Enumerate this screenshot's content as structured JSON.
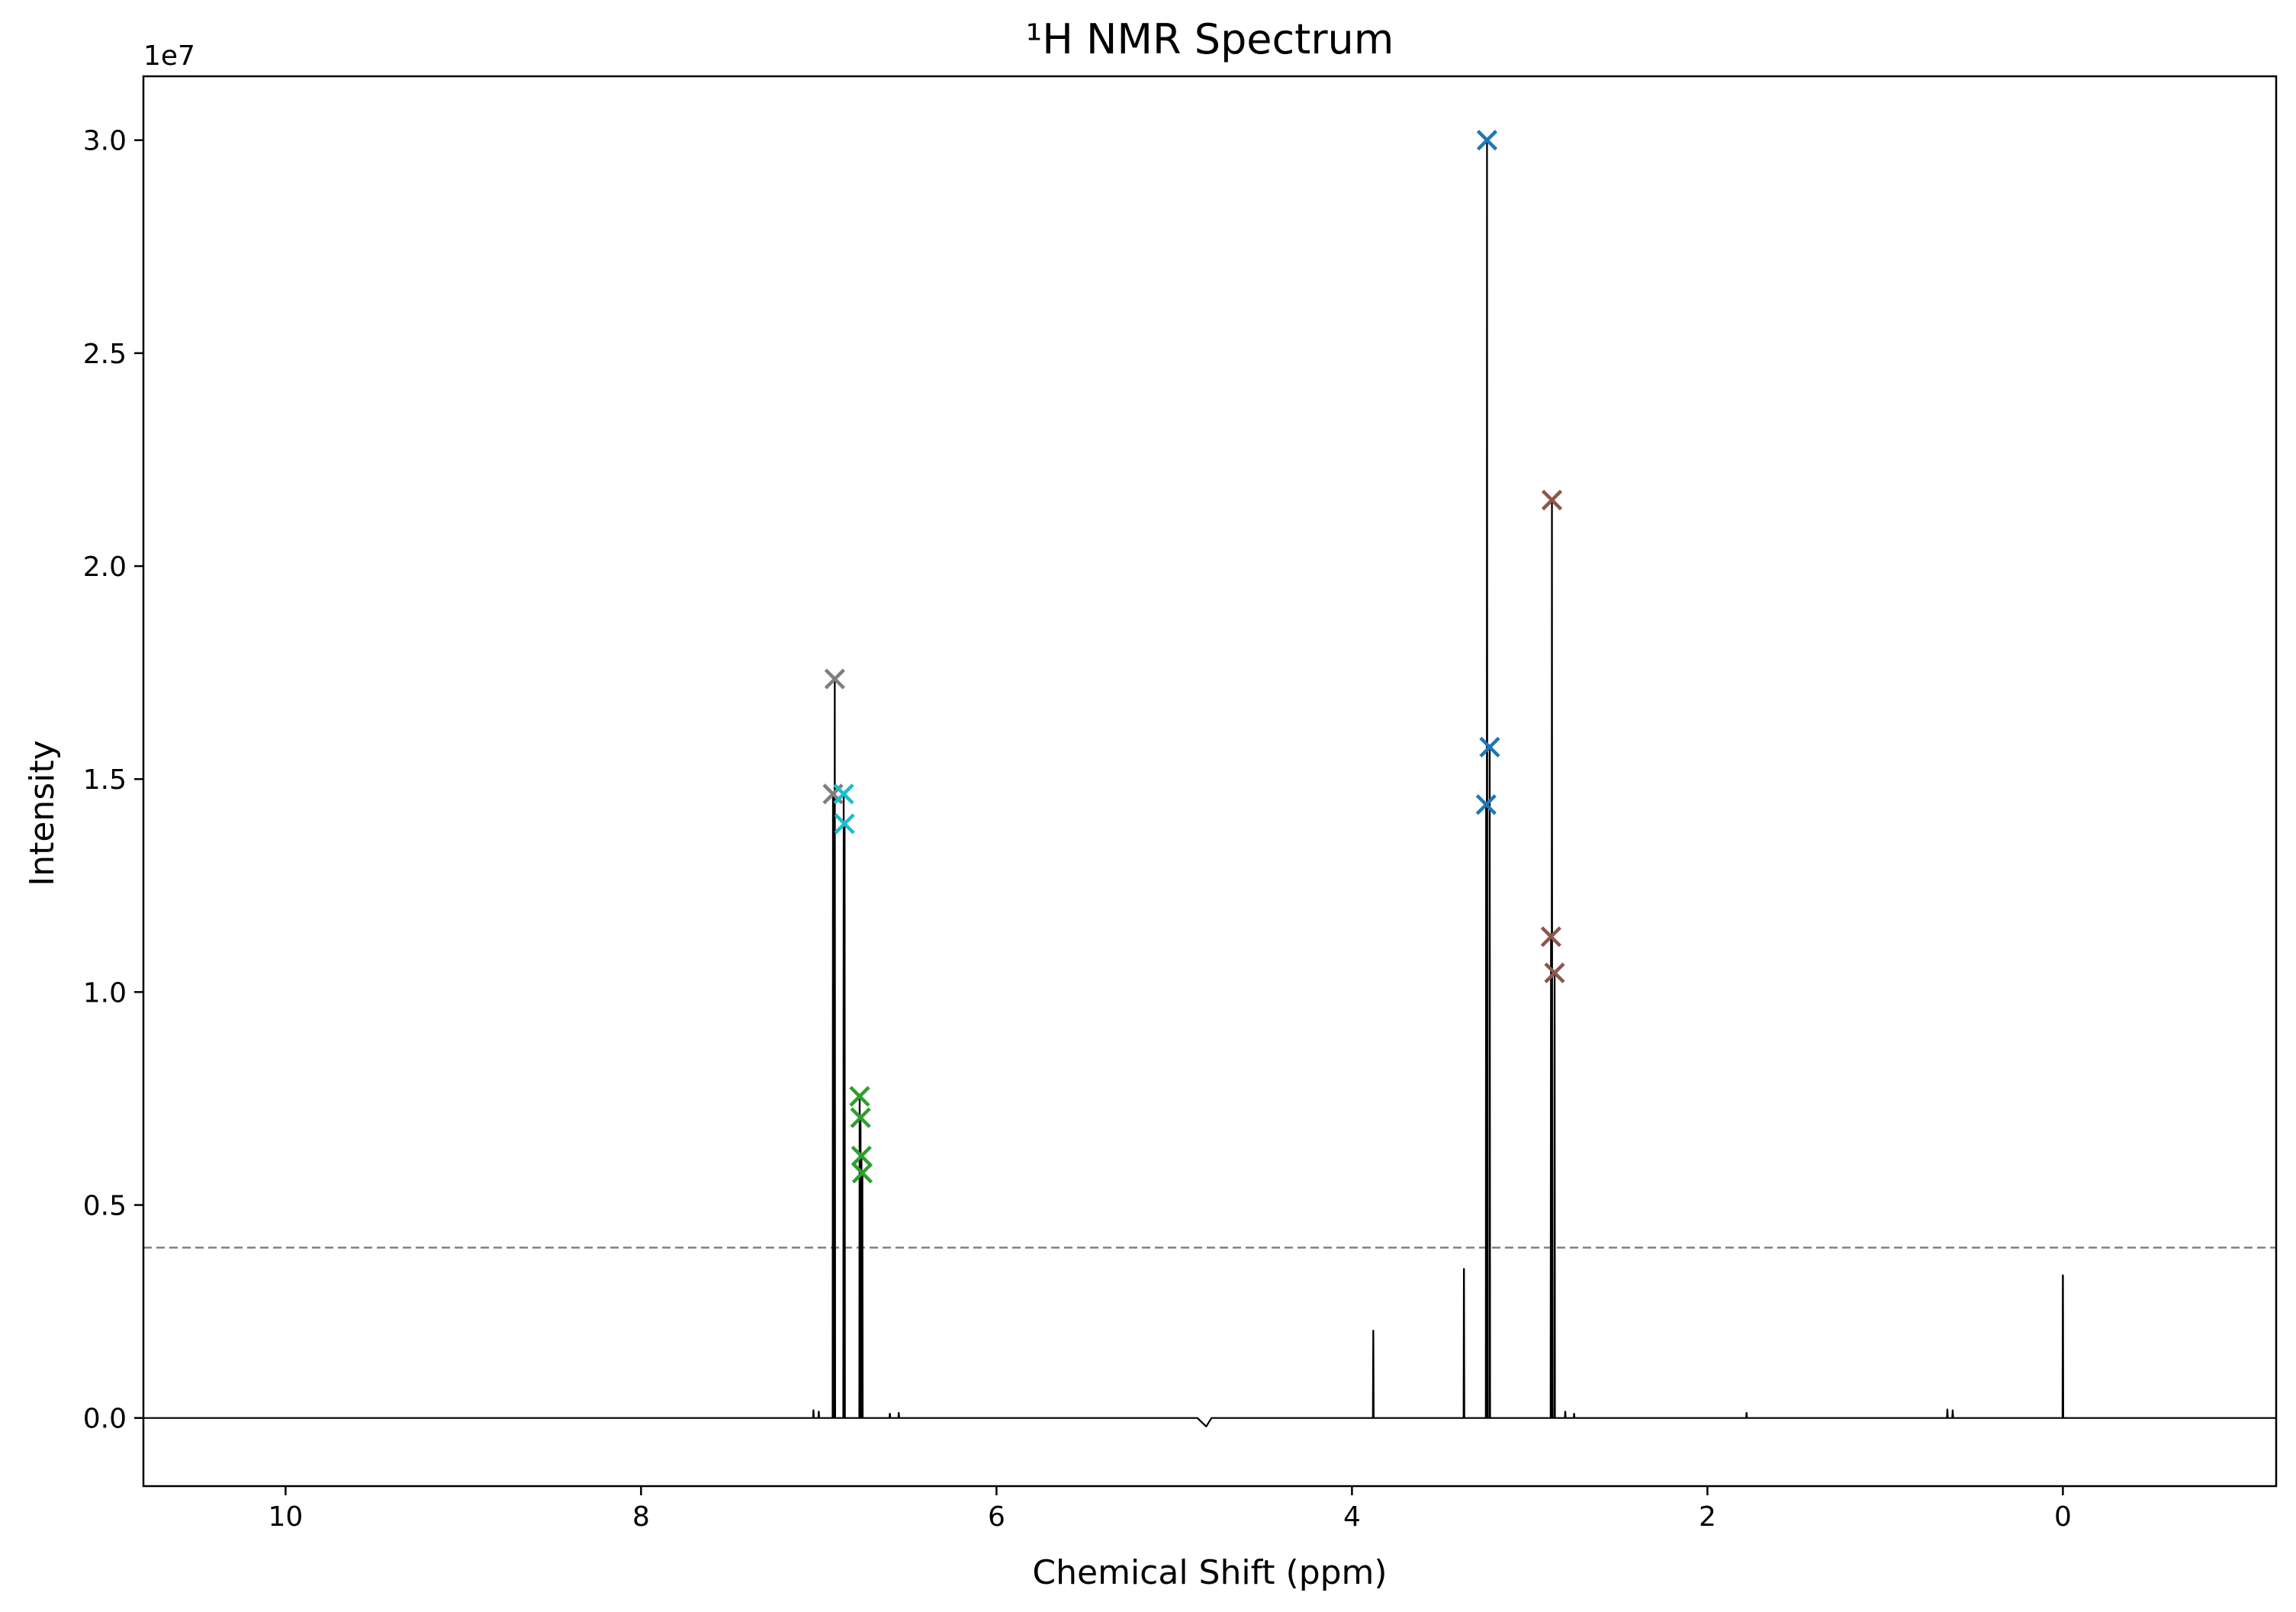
{
  "chart_data": {
    "type": "line",
    "title": "¹H NMR Spectrum",
    "xlabel": "Chemical Shift (ppm)",
    "ylabel": "Intensity",
    "y_offset_label": "1e7",
    "xlim": [
      10.8,
      -1.2
    ],
    "ylim": [
      -0.16,
      3.15
    ],
    "x_inverted": true,
    "x_ticks": [
      10,
      8,
      6,
      4,
      2,
      0
    ],
    "x_tick_labels": [
      "10",
      "8",
      "6",
      "4",
      "2",
      "0"
    ],
    "y_ticks": [
      0.0,
      0.5,
      1.0,
      1.5,
      2.0,
      2.5,
      3.0
    ],
    "y_tick_labels": [
      "0.0",
      "0.5",
      "1.0",
      "1.5",
      "2.0",
      "2.5",
      "3.0"
    ],
    "grid": false,
    "threshold": {
      "y": 0.4,
      "style": "dashed",
      "color": "#808080"
    },
    "spectrum_color": "#000000",
    "spectrum_peaks": [
      {
        "x": 7.03,
        "y": 0.018
      },
      {
        "x": 7.0,
        "y": 0.015
      },
      {
        "x": 6.92,
        "y": 1.465
      },
      {
        "x": 6.91,
        "y": 1.735
      },
      {
        "x": 6.86,
        "y": 1.465
      },
      {
        "x": 6.855,
        "y": 1.395
      },
      {
        "x": 6.77,
        "y": 0.755
      },
      {
        "x": 6.765,
        "y": 0.705
      },
      {
        "x": 6.76,
        "y": 0.615
      },
      {
        "x": 6.755,
        "y": 0.575
      },
      {
        "x": 6.6,
        "y": 0.01
      },
      {
        "x": 6.55,
        "y": 0.012
      },
      {
        "x": 3.88,
        "y": 0.205
      },
      {
        "x": 3.37,
        "y": 0.35
      },
      {
        "x": 3.245,
        "y": 1.44
      },
      {
        "x": 3.24,
        "y": 3.0
      },
      {
        "x": 3.225,
        "y": 1.575
      },
      {
        "x": 2.88,
        "y": 1.13
      },
      {
        "x": 2.875,
        "y": 2.155
      },
      {
        "x": 2.86,
        "y": 1.045
      },
      {
        "x": 2.8,
        "y": 0.015
      },
      {
        "x": 2.75,
        "y": 0.01
      },
      {
        "x": 1.78,
        "y": 0.012
      },
      {
        "x": 0.65,
        "y": 0.02
      },
      {
        "x": 0.62,
        "y": 0.018
      },
      {
        "x": 0.0,
        "y": 0.335
      }
    ],
    "dip": {
      "x": 4.82,
      "y": -0.02
    },
    "series": [
      {
        "color": "#7f7f7f",
        "points": [
          [
            6.91,
            1.735
          ],
          [
            6.92,
            1.465
          ]
        ]
      },
      {
        "color": "#17becf",
        "points": [
          [
            6.86,
            1.465
          ],
          [
            6.855,
            1.395
          ]
        ]
      },
      {
        "color": "#2ca02c",
        "points": [
          [
            6.77,
            0.755
          ],
          [
            6.765,
            0.705
          ],
          [
            6.76,
            0.615
          ],
          [
            6.755,
            0.575
          ]
        ]
      },
      {
        "color": "#1f77b4",
        "points": [
          [
            3.24,
            3.0
          ],
          [
            3.225,
            1.575
          ],
          [
            3.245,
            1.44
          ]
        ]
      },
      {
        "color": "#8c564b",
        "points": [
          [
            2.875,
            2.155
          ],
          [
            2.88,
            1.13
          ],
          [
            2.86,
            1.045
          ]
        ]
      }
    ]
  }
}
